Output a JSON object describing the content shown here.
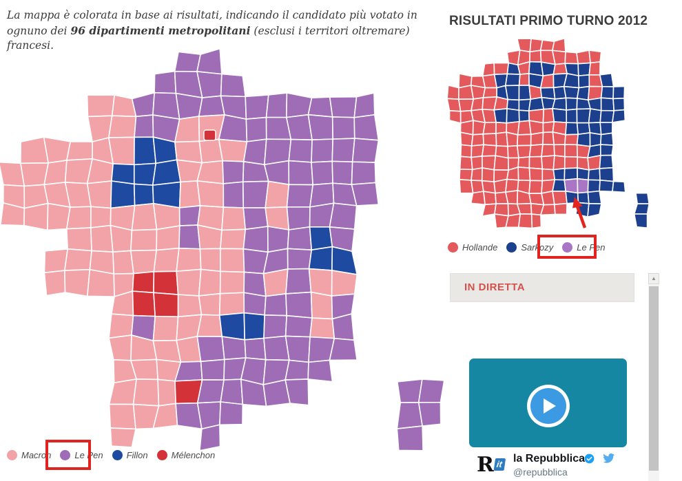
{
  "intro": {
    "text_before": "La mappa è colorata in base ai risultati, indicando il candidato più votato in ognuno dei ",
    "text_bold": "96 dipartimenti metropolitani",
    "text_after": " (esclusi i territori oltremare) francesi."
  },
  "map2017": {
    "palette": {
      "M": "#F2A3A7",
      "L": "#9E6DB5",
      "F": "#1E4BA1",
      "X": "#D23238"
    },
    "cell": 32,
    "ox": 2,
    "oy": 75,
    "jitter": 4.5,
    "rows": [
      "........LL..........",
      ".......LLLL.........",
      "....MMLLLLLLLLLLL...",
      "....MMLLMMLLLLLLL...",
      ".MMMMMFFMMMLLLLLL...",
      "MMMMMFFFMMLLLLLLL...",
      "MMMMMFFFMMLLMLLLL...",
      "MMMMMMMMLMMLMLLL....",
      "...MMMMMLMMLLLFL....",
      "..MMMMMMMMMLLLFF....",
      "..MMMMXXMMMLMLMM....",
      ".....MXXMMMLLLML....",
      ".....MLMMMFFLLML....",
      ".....MMMMLLLLLLL....",
      ".....MMMLLLLLLL.....",
      ".....MMMXLLLLL....LL",
      ".....MMMLLL.......LL",
      ".....M...L........L."
    ],
    "paris_dot_color": "#D23238",
    "legend": [
      {
        "label": "Macron",
        "color": "#F2A3A7"
      },
      {
        "label": "Le Pen",
        "color": "#9E6DB5"
      },
      {
        "label": "Fillon",
        "color": "#1E4BA1"
      },
      {
        "label": "Mélenchon",
        "color": "#D23238"
      }
    ]
  },
  "map2012": {
    "title": "RISULTATI PRIMO TURNO 2012",
    "palette": {
      "H": "#E4595B",
      "S": "#1C3F8E",
      "P": "#A876C4"
    },
    "cell": 17,
    "ox": 651,
    "oy": 58,
    "jitter": 2.4,
    "rows": [
      "......HHHH........",
      ".....HHHHHHHH.....",
      "...HHSHSSHSSH.....",
      ".HHHSSHSHSSSHS....",
      "HHHHSSSHSSSSHSS...",
      "HHHHHSSSSSSSSSS...",
      "HHHHSSSHHSSSSSS...",
      ".HHHHHHHHHSSSS....",
      ".HHHHHHHHHHSSS....",
      ".HHHHHHHHHHHSS....",
      ".HHHHHHHHHHHHS....",
      ".HHHHHHHHSSSSS....",
      ".HHHHHHHHSPPSSS...",
      "..HHHHHHHHSSS...S.",
      "...HHHHHHH.SS...S.",
      "....HHHH........S."
    ],
    "arrow_color": "#E3231C",
    "legend": [
      {
        "label": "Hollande",
        "color": "#E4595B"
      },
      {
        "label": "Sarkozy",
        "color": "#1C3F8E"
      },
      {
        "label": "Le Pen",
        "color": "#A876C4"
      }
    ]
  },
  "highlight": {
    "border_color": "#E0231E"
  },
  "live": {
    "title": "IN DIRETTA",
    "color": "#D4504B",
    "bg": "#E9E8E5"
  },
  "scrollbar": {
    "up_arrow": "▲"
  },
  "video": {
    "bg": "#1687A2",
    "play_color": "#3B9AE1"
  },
  "tweet": {
    "name": "la Repubblica",
    "handle": "@repubblica",
    "avatar_main": "R",
    "avatar_suffix": "it",
    "avatar_suffix_bg": "#2E7CC0",
    "badge_color": "#1DA1F2",
    "bird_color": "#55ACEE"
  }
}
